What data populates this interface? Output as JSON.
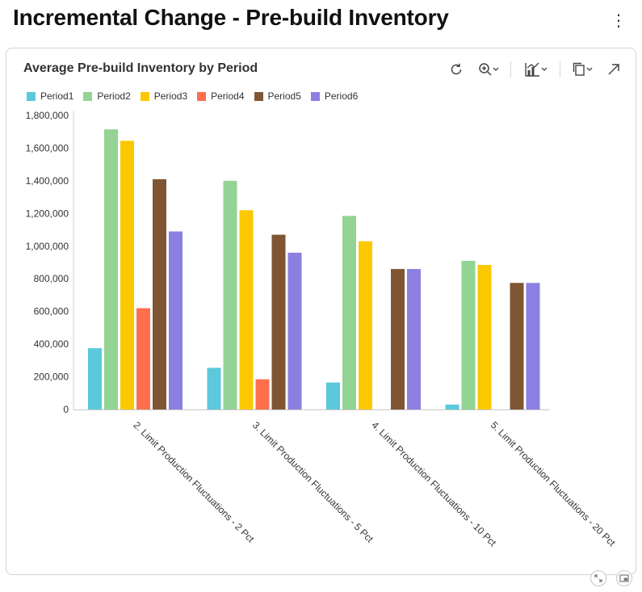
{
  "page": {
    "title": "Incremental Change - Pre-build Inventory",
    "menu_icon": "kebab-menu-icon"
  },
  "card": {
    "toolbar": {
      "refresh_icon": "refresh-icon",
      "zoom_icon": "zoom-in-icon",
      "chart_type_icon": "chart-type-icon",
      "copy_icon": "copy-icon",
      "expand_icon": "expand-arrow-icon"
    }
  },
  "footer": {
    "left_icon": "fit-icon",
    "right_icon": "picture-in-picture-icon"
  },
  "colors": {
    "Period1": "#5bc8dc",
    "Period2": "#93d394",
    "Period3": "#fcc800",
    "Period4": "#ff6f4c",
    "Period5": "#7f5533",
    "Period6": "#8b7fe2"
  },
  "chart_data": {
    "type": "bar",
    "title": "Average Pre-build Inventory by Period",
    "xlabel": "",
    "ylabel": "",
    "ylim": [
      0,
      1800000
    ],
    "yticks": [
      0,
      200000,
      400000,
      600000,
      800000,
      1000000,
      1200000,
      1400000,
      1600000,
      1800000
    ],
    "ytick_labels": [
      "0",
      "200,000",
      "400,000",
      "600,000",
      "800,000",
      "1,000,000",
      "1,200,000",
      "1,400,000",
      "1,600,000",
      "1,800,000"
    ],
    "legend_position": "top-left",
    "grid": false,
    "categories": [
      "2. Limit Production Fluctuations - 2 Pct",
      "3. Limit Production Fluctuations - 5 Pct",
      "4. Limit Production Fluctuations - 10 Pct",
      "5. Limit Production Fluctuations - 20 Pct"
    ],
    "series": [
      {
        "name": "Period1",
        "values": [
          375000,
          255000,
          165000,
          30000
        ]
      },
      {
        "name": "Period2",
        "values": [
          1715000,
          1400000,
          1185000,
          910000
        ]
      },
      {
        "name": "Period3",
        "values": [
          1645000,
          1220000,
          1030000,
          885000
        ]
      },
      {
        "name": "Period4",
        "values": [
          620000,
          185000,
          0,
          0
        ]
      },
      {
        "name": "Period5",
        "values": [
          1410000,
          1070000,
          860000,
          775000
        ]
      },
      {
        "name": "Period6",
        "values": [
          1090000,
          960000,
          860000,
          775000
        ]
      }
    ]
  }
}
